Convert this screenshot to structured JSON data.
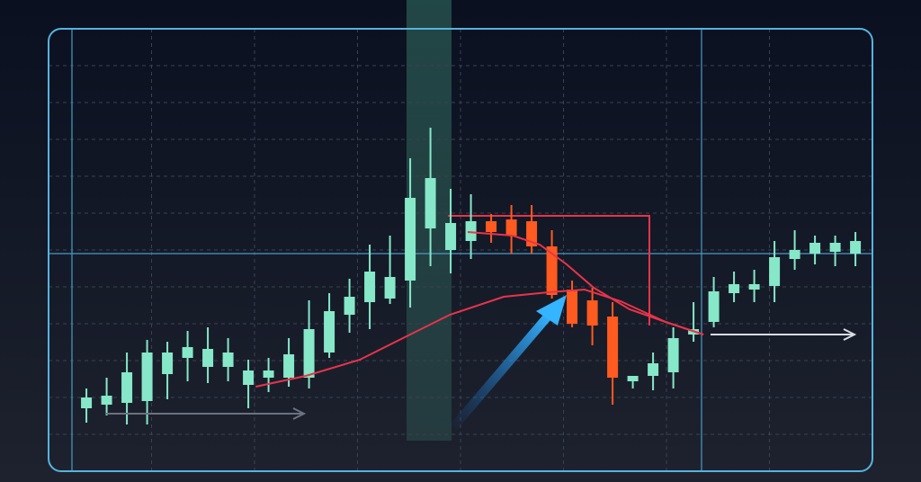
{
  "chart_data": {
    "type": "candlestick",
    "x": [
      0,
      1,
      2,
      3,
      4,
      5,
      6,
      7,
      8,
      9,
      10,
      11,
      12,
      13,
      14,
      15,
      16,
      17,
      18,
      19,
      20,
      21,
      22,
      23,
      24,
      25,
      26,
      27,
      28,
      29,
      30,
      31,
      32,
      33,
      34,
      35,
      36,
      37,
      38
    ],
    "open": [
      70,
      74,
      76,
      78,
      108,
      126,
      116,
      116,
      96,
      104,
      104,
      104,
      132,
      174,
      188,
      192,
      212,
      270,
      246,
      256,
      278,
      280,
      278,
      250,
      202,
      190,
      172,
      100,
      106,
      110,
      152,
      166,
      198,
      202,
      206,
      236,
      242,
      244,
      242
    ],
    "high": [
      92,
      104,
      132,
      146,
      144,
      156,
      160,
      148,
      124,
      126,
      148,
      190,
      198,
      214,
      252,
      262,
      348,
      382,
      314,
      308,
      286,
      296,
      296,
      268,
      212,
      204,
      188,
      106,
      132,
      160,
      188,
      216,
      222,
      224,
      256,
      268,
      262,
      262,
      266
    ],
    "low": [
      54,
      62,
      52,
      52,
      80,
      100,
      98,
      100,
      70,
      88,
      94,
      92,
      126,
      154,
      158,
      186,
      182,
      228,
      220,
      236,
      254,
      242,
      242,
      192,
      160,
      140,
      74,
      92,
      90,
      92,
      144,
      160,
      188,
      188,
      188,
      224,
      230,
      228,
      228
    ],
    "close": [
      82,
      84,
      110,
      132,
      132,
      138,
      136,
      132,
      112,
      112,
      130,
      158,
      178,
      194,
      222,
      216,
      304,
      326,
      276,
      278,
      266,
      262,
      250,
      196,
      164,
      162,
      104,
      106,
      120,
      148,
      158,
      200,
      208,
      208,
      238,
      246,
      254,
      254,
      256
    ],
    "up_color": "#86e8c8",
    "down_color": "#ff5a1f",
    "lines": [
      {
        "color": "#e8344a",
        "x": [
          8.36,
          10.84,
          13.51,
          15.73,
          17.96,
          20.62,
          22.84,
          24.62,
          26.4,
          28.62,
          30.49
        ],
        "values": [
          94,
          106,
          124,
          149,
          174,
          194,
          199,
          202,
          189,
          166,
          152
        ]
      },
      {
        "color": "#e8344a",
        "x": [
          18.84,
          21.07,
          22.4,
          23.73,
          25.07,
          26.84,
          28.62,
          30.49
        ],
        "values": [
          266,
          262,
          252,
          230,
          204,
          180,
          166,
          152
        ]
      }
    ],
    "xlim": [
      -1.87,
      38.84
    ],
    "ylim": [
      0,
      492
    ],
    "grid": true
  }
}
